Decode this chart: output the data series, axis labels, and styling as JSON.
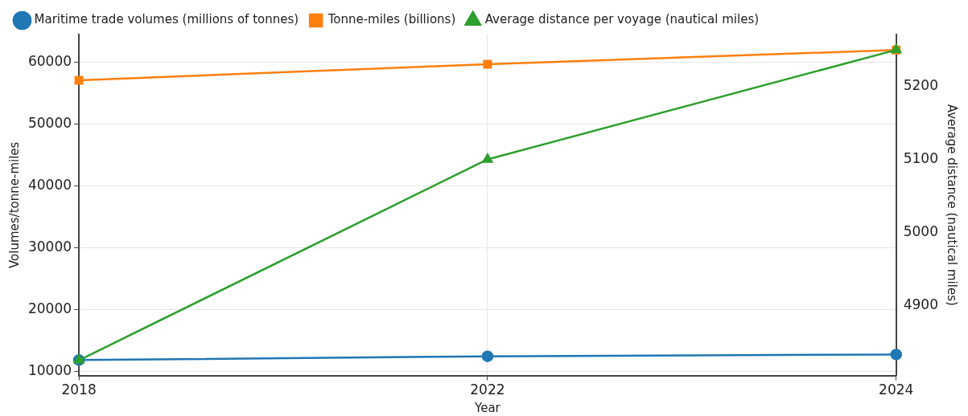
{
  "chart_data": {
    "type": "line",
    "xlabel": "Year",
    "ylabel": "Volumes/tonne-miles",
    "y2label": "Average distance (nautical miles)",
    "categories": [
      "2018",
      "2022",
      "2024"
    ],
    "series": [
      {
        "name": "Maritime trade volumes (millions of tonnes)",
        "color": "#1f77b4",
        "marker": "circle",
        "values": [
          11900,
          12500,
          12800
        ]
      },
      {
        "name": "Tonne-miles (billions)",
        "color": "#ff7f0e",
        "marker": "square",
        "values": [
          57100,
          59700,
          62000
        ]
      },
      {
        "name": "Average distance per voyage (nautical miles)",
        "color": "#2ca02c",
        "marker": "triangle",
        "axis": "y2",
        "values": [
          4825,
          5100,
          5250
        ]
      }
    ],
    "ylim": [
      9400,
      64500
    ],
    "yticks": [
      10000,
      20000,
      30000,
      40000,
      50000,
      60000
    ],
    "y2lim": [
      4804,
      5271
    ],
    "y2ticks": [
      4900,
      5000,
      5100,
      5200
    ],
    "grid": true,
    "legend": "top left"
  }
}
